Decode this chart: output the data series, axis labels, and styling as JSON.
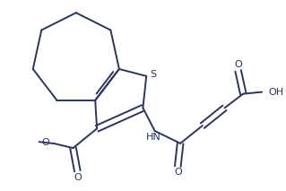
{
  "bg_color": "#ffffff",
  "line_color": "#2a3560",
  "line_width": 1.4,
  "figsize": [
    3.19,
    2.13
  ],
  "dpi": 100,
  "labels": {
    "S": "S",
    "HN": "HN",
    "O_methoxy": "O",
    "O_carbonyl_ester": "O",
    "O_amide": "O",
    "O_acid_carbonyl": "O",
    "OH": "OH"
  }
}
